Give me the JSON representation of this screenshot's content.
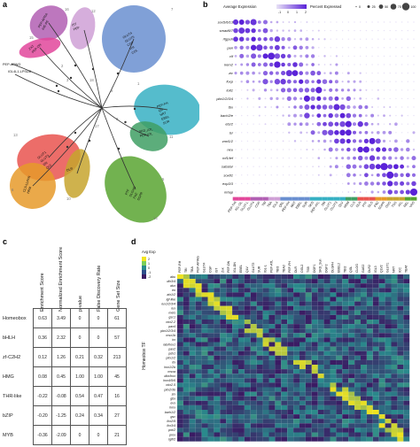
{
  "panels": {
    "a": "a",
    "b": "b",
    "c": "c",
    "d": "d"
  },
  "tree": {
    "clusters": [
      {
        "id": "tr1",
        "color": "#b15fb3",
        "labels": [
          "PEP-APRA",
          "IHE-PE"
        ]
      },
      {
        "id": "tr2",
        "color": "#e2479b",
        "labels": [
          "ZXJ",
          "PEP-DN"
        ]
      },
      {
        "id": "tr3",
        "color": "#cfa0d6",
        "labels": [
          "IST",
          "PEP"
        ]
      },
      {
        "id": "tr4",
        "color": "#6a8fd0",
        "labels": [
          "GLUT4",
          "GLUT5",
          "CGP",
          "THI",
          "COL"
        ]
      },
      {
        "id": "tr5",
        "color": "#37b0c3",
        "labels": [
          "PEP-FH",
          "QR",
          "NRT",
          "EBEL",
          "SUR"
        ]
      },
      {
        "id": "tr6",
        "color": "#3f9f64",
        "labels": [
          "SKD_ATL",
          "PEP-ATL"
        ]
      },
      {
        "id": "tr7",
        "color": "#e9544f",
        "labels": [
          "GLUT1",
          "GLUT3",
          "DN",
          "QLV"
        ]
      },
      {
        "id": "tr8",
        "color": "#e69a2a",
        "labels": [
          "CLS-LLPFR",
          "HRM"
        ]
      },
      {
        "id": "tr9",
        "color": "#c7a52e",
        "labels": [
          "DLR"
        ]
      },
      {
        "id": "tr10",
        "color": "#59a531",
        "labels": [
          "PTF",
          "DLGHG",
          "FNZ",
          "SGPR"
        ]
      }
    ],
    "leaf_labels": [
      "PEP-APWG",
      "IGL4L1-LPSUD"
    ],
    "numbers": [
      "16",
      "15",
      "12",
      "7",
      "4",
      "11",
      "13",
      "6",
      "10",
      "5",
      "14",
      "9",
      "8",
      "17",
      "18",
      "3",
      "2",
      "1"
    ]
  },
  "dotplot": {
    "legend_title_expr": "Average Expression",
    "legend_ticks_expr": [
      "-1",
      "0",
      "1",
      "2"
    ],
    "legend_title_pct": "Percent Expressed",
    "legend_ticks_pct": [
      "0",
      "25",
      "50",
      "75",
      "100"
    ],
    "genes": [
      "sox5/6/13",
      "smad6/7",
      "rfgpuh",
      "pan",
      "clf",
      "irem2",
      "zic",
      "foxp",
      "tolt1",
      "pbx1/2/3/4",
      "tbx",
      "bach2/e",
      "ets/2",
      "lsr",
      "znrt1/2",
      "neu",
      "tcf1/lef",
      "sabstar",
      "sox81",
      "exp3/3",
      "mhap"
    ],
    "clusters": [
      "PEP-THI",
      "IGL-OL",
      "GLUT-L",
      "GLUT4",
      "CGP",
      "TBI",
      "TBA",
      "IGL4",
      "QRL",
      "PEP-FH",
      "NRT",
      "EBEL",
      "SUR",
      "SKD",
      "PEP-ATL",
      "DN",
      "GLUT1",
      "GLUT3",
      "QLV",
      "HRM",
      "CLS",
      "DLR",
      "PTF",
      "DLG",
      "FNZ",
      "SGPR",
      "OSG",
      "TSG",
      "ATL",
      "REL",
      "VAO"
    ]
  },
  "enrichment": {
    "columns": [
      "Enrichment Score",
      "Normalized Enrichment Score",
      "p-value",
      "False Discovery Rate",
      "Gene Set Size"
    ],
    "rows": [
      {
        "label": "Homeobox",
        "values": [
          "0.63",
          "3.49",
          "0",
          "0",
          "61"
        ]
      },
      {
        "label": "bHLH",
        "values": [
          "0.36",
          "2.32",
          "0",
          "0",
          "57"
        ]
      },
      {
        "label": "zf-C2H2",
        "values": [
          "0.12",
          "1.26",
          "0.21",
          "0.32",
          "213"
        ]
      },
      {
        "label": "HMG",
        "values": [
          "0.08",
          "0.45",
          "1.00",
          "1.00",
          "45"
        ]
      },
      {
        "label": "THR-like",
        "values": [
          "-0.22",
          "-0.08",
          "0.54",
          "0.47",
          "16"
        ]
      },
      {
        "label": "bZIP",
        "values": [
          "-0.20",
          "-1.25",
          "0.24",
          "0.34",
          "27"
        ]
      },
      {
        "label": "MYB",
        "values": [
          "-0.36",
          "-2.09",
          "0",
          "0",
          "21"
        ]
      }
    ]
  },
  "heatmap": {
    "legend_title": "Avg Exp",
    "legend_ticks": [
      "2",
      "1",
      "0",
      "-1",
      "-2"
    ],
    "y_axis_label": "Homeobox TF",
    "genes": [
      "abu",
      "dlx3/4",
      "dux",
      "en",
      "alx1/2",
      "lgf-like",
      "lux1/2/3/4",
      "lux",
      "meis",
      "gsc1",
      "nkx2.2",
      "pax4",
      "pbx1/2/3/4",
      "msx1b",
      "irx",
      "lab/hox1",
      "pax2",
      "pdx1",
      "pitx1/2",
      "tlx",
      "hox1/2b",
      "msxa",
      "dbx/hox",
      "hox4/5/6",
      "nkx2.5",
      "pitx2/3b",
      "six",
      "gbx",
      "evx",
      "hmx",
      "barh1/2",
      "gsc",
      "lhx2/9",
      "lhx3/4",
      "pnt/2",
      "prox",
      "tgif/2"
    ],
    "clusters": [
      "PEP-RH",
      "TBI",
      "TBA",
      "PEP-APWG",
      "GLUT4",
      "CGP",
      "IST",
      "Zxk",
      "PEP-DN",
      "IGL-DN",
      "EBEL",
      "QLV",
      "GLUT3",
      "SUR",
      "IGL-L",
      "PEP-ATL",
      "TBI3",
      "TBA3",
      "PEP-FH",
      "DLR",
      "OGL2",
      "TSB",
      "DGP1",
      "SKD_Sun",
      "DGP2",
      "DLGFH",
      "EBEL2",
      "TBI2",
      "QGL",
      "CLOG",
      "GAS2",
      "DLR2",
      "IGL3",
      "QLV2",
      "GLUT1",
      "NRT",
      "ICC",
      "TBAT"
    ]
  },
  "colors": {
    "dot_low": "#e8e2f6",
    "dot_high": "#5a22d8",
    "heat_low": "#3b1a63",
    "heat_mid": "#2a8a8c",
    "heat_high": "#f2e41f"
  }
}
